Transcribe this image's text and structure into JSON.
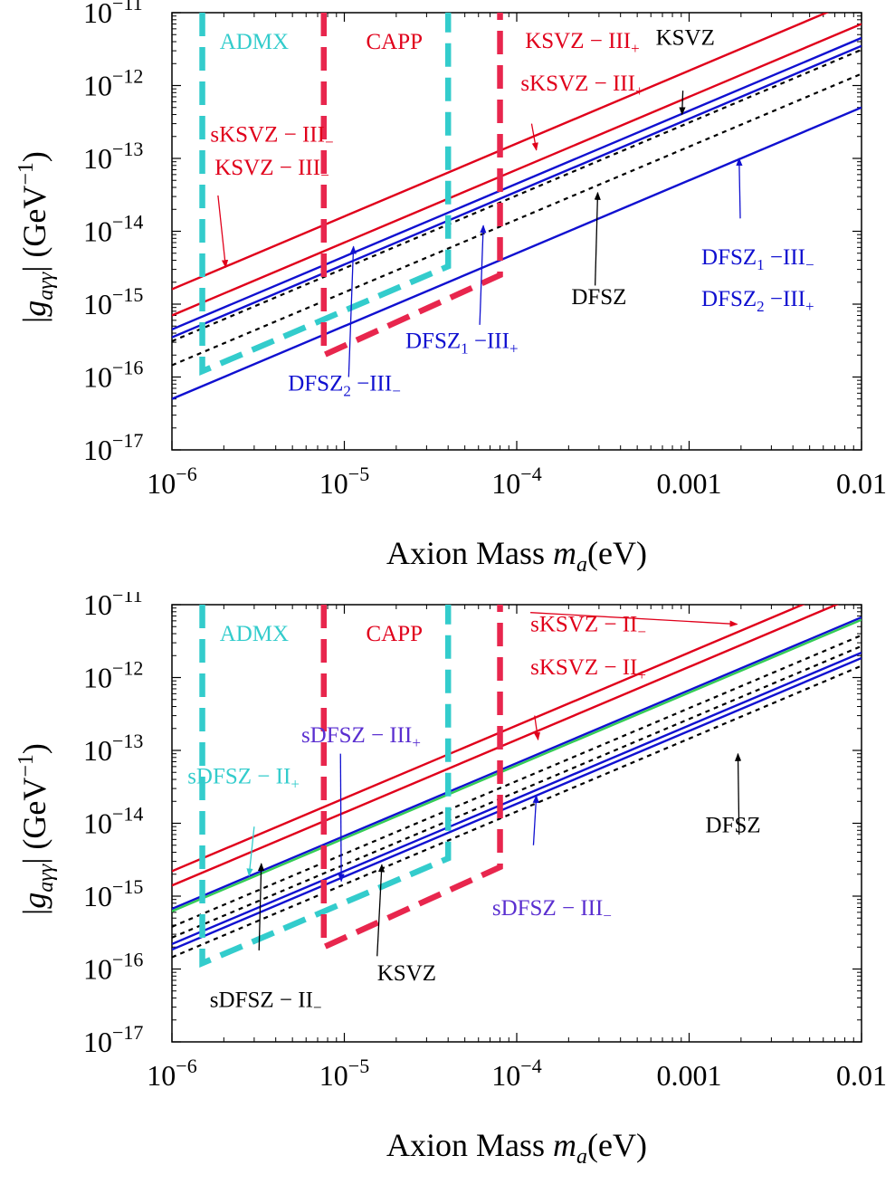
{
  "charts": [
    {
      "title": "",
      "xlabel": {
        "main": "Axion Mass ",
        "var": "m",
        "sub": "a",
        "unit": "(eV)"
      },
      "ylabel": {
        "bar1": "|",
        "var": "g",
        "sub": "aγγ",
        "bar2": "|",
        "unit": " (GeV",
        "exp": "−1",
        "close": ")"
      },
      "xticks": [
        {
          "value": 1e-06,
          "base": "10",
          "exp": "−6"
        },
        {
          "value": 1e-05,
          "base": "10",
          "exp": "−5"
        },
        {
          "value": 0.0001,
          "base": "10",
          "exp": "−4"
        },
        {
          "value": 0.001,
          "label": "0.001"
        },
        {
          "value": 0.01,
          "label": "0.01"
        }
      ],
      "yticks": [
        {
          "value": 1e-17,
          "base": "10",
          "exp": "−17"
        },
        {
          "value": 1e-16,
          "base": "10",
          "exp": "−16"
        },
        {
          "value": 1e-15,
          "base": "10",
          "exp": "−15"
        },
        {
          "value": 1e-14,
          "base": "10",
          "exp": "−14"
        },
        {
          "value": 1e-13,
          "base": "10",
          "exp": "−13"
        },
        {
          "value": 1e-12,
          "base": "10",
          "exp": "−12"
        },
        {
          "value": 1e-11,
          "base": "10",
          "exp": "−11"
        }
      ],
      "annotations": [
        {
          "text": "ADMX",
          "color": "#33cccc",
          "x": 3e-06,
          "y": 3.2e-12
        },
        {
          "text": "CAPP",
          "color": "#e0001b",
          "x": 1.95e-05,
          "y": 3.2e-12
        },
        {
          "text": "KSVZ − III",
          "sub": "+",
          "color": "#e0001b",
          "x": 0.00024,
          "y": 3.3e-12
        },
        {
          "text": "sKSVZ − III",
          "sub": "+",
          "color": "#e0001b",
          "x": 0.00024,
          "y": 8.5e-13
        },
        {
          "text": "KSVZ",
          "color": "#000000",
          "x": 0.00095,
          "y": 3.6e-12
        },
        {
          "text": "sKSVZ − III",
          "sub": "−",
          "color": "#e0001b",
          "x": 3.8e-06,
          "y": 1.7e-13
        },
        {
          "text": "KSVZ − III",
          "sub": "−",
          "color": "#e0001b",
          "x": 3.8e-06,
          "y": 6e-14
        },
        {
          "text": "DFSZ",
          "sub": "1",
          "tail": " −III",
          "sub2": "−",
          "color": "#1010d0",
          "x": 0.0025,
          "y": 3.5e-15
        },
        {
          "text": "DFSZ",
          "sub": "2",
          "tail": " −III",
          "sub2": "+",
          "color": "#1010d0",
          "x": 0.0025,
          "y": 9.5e-16
        },
        {
          "text": "DFSZ",
          "color": "#000000",
          "x": 0.0003,
          "y": 1e-15
        },
        {
          "text": "DFSZ",
          "sub": "1",
          "tail": " −III",
          "sub2": "+",
          "color": "#1010d0",
          "x": 4.8e-05,
          "y": 2.5e-16
        },
        {
          "text": "DFSZ",
          "sub": "2",
          "tail": " −III",
          "sub2": "−",
          "color": "#1010d0",
          "x": 1e-05,
          "y": 6.5e-17
        }
      ],
      "arrows": [
        {
          "color": "#e0001b",
          "from": [
            0.000122,
            3e-13
          ],
          "to": [
            0.00013,
            1.3e-13
          ]
        },
        {
          "color": "#000000",
          "from": [
            0.00092,
            8.5e-13
          ],
          "to": [
            0.00091,
            4e-13
          ]
        },
        {
          "color": "#e0001b",
          "from": [
            1.85e-06,
            3.1e-14
          ],
          "to": [
            2.05e-06,
            3.2e-15
          ]
        },
        {
          "color": "#1010d0",
          "from": [
            0.00198,
            1.5e-14
          ],
          "to": [
            0.00195,
            1e-13
          ]
        },
        {
          "color": "#000000",
          "from": [
            0.000285,
            1.8e-15
          ],
          "to": [
            0.000295,
            3.4e-14
          ]
        },
        {
          "color": "#1010d0",
          "from": [
            6.1e-05,
            5.2e-16
          ],
          "to": [
            6.4e-05,
            1.2e-14
          ]
        },
        {
          "color": "#1010d0",
          "from": [
            1.06e-05,
            1e-16
          ],
          "to": [
            1.13e-05,
            6.2e-15
          ]
        }
      ],
      "chart_data": {
        "type": "line",
        "xscale": "log",
        "yscale": "log",
        "xlim": [
          1e-06,
          0.01
        ],
        "ylim": [
          1e-17,
          1e-11
        ],
        "grid": false,
        "series": [
          {
            "color": "#e0001b",
            "dash": false,
            "x": [
              1e-06,
              0.01
            ],
            "y": [
              1.6e-15,
              1.6e-11
            ]
          },
          {
            "color": "#e0001b",
            "dash": false,
            "x": [
              1e-06,
              0.01
            ],
            "y": [
              7e-16,
              7e-12
            ]
          },
          {
            "color": "#1010d0",
            "dash": false,
            "x": [
              1e-06,
              0.01
            ],
            "y": [
              4.5e-16,
              4.5e-12
            ]
          },
          {
            "color": "#1010d0",
            "dash": false,
            "x": [
              1e-06,
              0.01
            ],
            "y": [
              3.5e-16,
              3.5e-12
            ]
          },
          {
            "color": "#000000",
            "dash": true,
            "x": [
              1e-06,
              0.01
            ],
            "y": [
              3.1e-16,
              3.1e-12
            ]
          },
          {
            "color": "#000000",
            "dash": true,
            "x": [
              1e-06,
              0.01
            ],
            "y": [
              1.45e-16,
              1.45e-12
            ]
          },
          {
            "color": "#1010d0",
            "dash": false,
            "x": [
              1e-06,
              0.01
            ],
            "y": [
              5e-17,
              5e-13
            ]
          }
        ],
        "limits": [
          {
            "name": "ADMX",
            "color": "#33cccc",
            "x": [
              1.5e-06,
              1.5e-06,
              4e-05,
              4e-05
            ],
            "y": [
              1e-11,
              1.2e-16,
              3.3e-15,
              1e-11
            ]
          },
          {
            "name": "CAPP",
            "color": "#e8264d",
            "x": [
              7.6e-06,
              7.6e-06,
              8e-05,
              8e-05
            ],
            "y": [
              1e-11,
              2e-16,
              2.5e-15,
              1e-11
            ]
          }
        ]
      }
    },
    {
      "title": "",
      "xlabel": {
        "main": "Axion Mass ",
        "var": "m",
        "sub": "a",
        "unit": "(eV)"
      },
      "ylabel": {
        "bar1": "|",
        "var": "g",
        "sub": "aγγ",
        "bar2": "|",
        "unit": " (GeV",
        "exp": "−1",
        "close": ")"
      },
      "xticks": [
        {
          "value": 1e-06,
          "base": "10",
          "exp": "−6"
        },
        {
          "value": 1e-05,
          "base": "10",
          "exp": "−5"
        },
        {
          "value": 0.0001,
          "base": "10",
          "exp": "−4"
        },
        {
          "value": 0.001,
          "label": "0.001"
        },
        {
          "value": 0.01,
          "label": "0.01"
        }
      ],
      "yticks": [
        {
          "value": 1e-17,
          "base": "10",
          "exp": "−17"
        },
        {
          "value": 1e-16,
          "base": "10",
          "exp": "−16"
        },
        {
          "value": 1e-15,
          "base": "10",
          "exp": "−15"
        },
        {
          "value": 1e-14,
          "base": "10",
          "exp": "−14"
        },
        {
          "value": 1e-13,
          "base": "10",
          "exp": "−13"
        },
        {
          "value": 1e-12,
          "base": "10",
          "exp": "−12"
        },
        {
          "value": 1e-11,
          "base": "10",
          "exp": "−11"
        }
      ],
      "annotations": [
        {
          "text": "ADMX",
          "color": "#33cccc",
          "x": 3e-06,
          "y": 3.2e-12
        },
        {
          "text": "CAPP",
          "color": "#e0001b",
          "x": 1.95e-05,
          "y": 3.2e-12
        },
        {
          "text": "sKSVZ − II",
          "sub": "−",
          "color": "#e0001b",
          "x": 0.00026,
          "y": 4.3e-12
        },
        {
          "text": "sKSVZ − II",
          "sub": "+",
          "color": "#e0001b",
          "x": 0.00026,
          "y": 1.1e-12
        },
        {
          "text": "sDFSZ − III",
          "sub": "+",
          "color": "#5a2fd0",
          "x": 1.25e-05,
          "y": 1.3e-13
        },
        {
          "text": "sDFSZ − II",
          "sub": "+",
          "color": "#33cccc",
          "x": 2.6e-06,
          "y": 3.5e-14
        },
        {
          "text": "DFSZ",
          "color": "#000000",
          "x": 0.0018,
          "y": 7.5e-15
        },
        {
          "text": "sDFSZ − III",
          "sub": "−",
          "color": "#5a2fd0",
          "x": 0.00016,
          "y": 5.5e-16
        },
        {
          "text": "sDFSZ − II",
          "sub": "−",
          "color": "#000000",
          "x": 3.5e-06,
          "y": 3e-17
        },
        {
          "text": "KSVZ",
          "color": "#000000",
          "x": 2.3e-05,
          "y": 7e-17
        }
      ],
      "arrows": [
        {
          "color": "#e0001b",
          "from": [
            0.00012,
            7.8e-12
          ],
          "to": [
            0.0019,
            5.4e-12
          ]
        },
        {
          "color": "#e0001b",
          "from": [
            0.000127,
            3e-13
          ],
          "to": [
            0.000133,
            1.4e-13
          ]
        },
        {
          "color": "#1010d0",
          "from": [
            9.5e-06,
            9e-14
          ],
          "to": [
            9.6e-06,
            1.6e-15
          ]
        },
        {
          "color": "#33cccc",
          "from": [
            3e-06,
            9e-15
          ],
          "to": [
            2.8e-06,
            1.9e-15
          ]
        },
        {
          "color": "#000000",
          "from": [
            0.00195,
            7e-15
          ],
          "to": [
            0.00192,
            9e-14
          ]
        },
        {
          "color": "#1010d0",
          "from": [
            0.000125,
            5e-15
          ],
          "to": [
            0.00013,
            2.4e-14
          ]
        },
        {
          "color": "#000000",
          "from": [
            3.2e-06,
            1.8e-16
          ],
          "to": [
            3.3e-06,
            2.8e-15
          ]
        },
        {
          "color": "#000000",
          "from": [
            1.55e-05,
            1.5e-16
          ],
          "to": [
            1.65e-05,
            2.7e-15
          ]
        }
      ],
      "chart_data": {
        "type": "line",
        "xscale": "log",
        "yscale": "log",
        "xlim": [
          1e-06,
          0.01
        ],
        "ylim": [
          1e-17,
          1e-11
        ],
        "grid": false,
        "series": [
          {
            "color": "#e0001b",
            "dash": false,
            "x": [
              1e-06,
              0.01
            ],
            "y": [
              2.2e-15,
              2.2e-11
            ]
          },
          {
            "color": "#e0001b",
            "dash": false,
            "x": [
              1e-06,
              0.01
            ],
            "y": [
              1.4e-15,
              1.4e-11
            ]
          },
          {
            "color": "#1010d0",
            "dash": false,
            "x": [
              1e-06,
              0.01
            ],
            "y": [
              6.7e-16,
              6.7e-12
            ]
          },
          {
            "color": "#33cc55",
            "dash": false,
            "x": [
              1e-06,
              0.01
            ],
            "y": [
              6.2e-16,
              6.2e-12
            ]
          },
          {
            "color": "#000000",
            "dash": true,
            "x": [
              1e-06,
              0.01
            ],
            "y": [
              3.8e-16,
              3.8e-12
            ]
          },
          {
            "color": "#000000",
            "dash": true,
            "x": [
              1e-06,
              0.01
            ],
            "y": [
              2.7e-16,
              2.7e-12
            ]
          },
          {
            "color": "#1010d0",
            "dash": false,
            "x": [
              1e-06,
              0.01
            ],
            "y": [
              2.2e-16,
              2.2e-12
            ]
          },
          {
            "color": "#1010d0",
            "dash": false,
            "x": [
              1e-06,
              0.01
            ],
            "y": [
              1.85e-16,
              1.85e-12
            ]
          },
          {
            "color": "#000000",
            "dash": true,
            "x": [
              1e-06,
              0.01
            ],
            "y": [
              1.45e-16,
              1.45e-12
            ]
          }
        ],
        "limits": [
          {
            "name": "ADMX",
            "color": "#33cccc",
            "x": [
              1.5e-06,
              1.5e-06,
              4e-05,
              4e-05
            ],
            "y": [
              1e-11,
              1.2e-16,
              3.3e-15,
              1e-11
            ]
          },
          {
            "name": "CAPP",
            "color": "#e8264d",
            "x": [
              7.6e-06,
              7.6e-06,
              8e-05,
              8e-05
            ],
            "y": [
              1e-11,
              2e-16,
              2.5e-15,
              1e-11
            ]
          }
        ]
      }
    }
  ]
}
